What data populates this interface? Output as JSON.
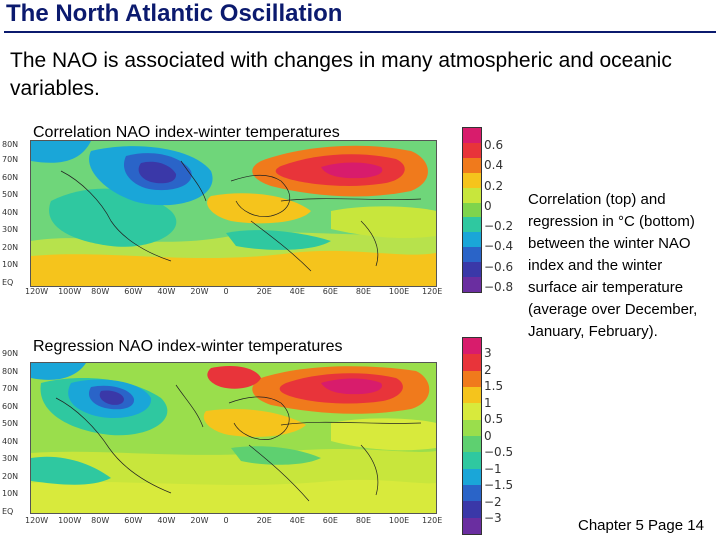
{
  "slide": {
    "title": "The North Atlantic Oscillation",
    "intro": "The NAO is associated with changes in many atmospheric and oceanic variables.",
    "caption": " Correlation (top) and regression in °C (bottom) between the winter NAO index and the winter surface air temperature (average over December, January, February).",
    "footer": "Chapter 5 Page 14"
  },
  "maps": {
    "top": {
      "label": "Correlation NAO index-winter temperatures",
      "lat_labels": [
        "80N",
        "70N",
        "60N",
        "50N",
        "40N",
        "30N",
        "20N",
        "10N",
        "EQ"
      ],
      "lat_top_label": "80N",
      "lon_labels": [
        "120W",
        "100W",
        "80W",
        "60W",
        "40W",
        "20W",
        "0",
        "20E",
        "40E",
        "60E",
        "80E",
        "100E",
        "120E"
      ],
      "colorbar_ticks": [
        "0.6",
        "0.4",
        "0.2",
        "0",
        "−0.2",
        "−0.4",
        "−0.6",
        "−0.8"
      ],
      "colorbar_colors": [
        "#d81c6c",
        "#e8343a",
        "#f07a1c",
        "#f5c41c",
        "#c8e63c",
        "#7ed44c",
        "#2fc8a0",
        "#1aa6d8",
        "#2a64c8",
        "#3a38a8",
        "#6a2ea0"
      ]
    },
    "bottom": {
      "label": "Regression NAO index-winter temperatures",
      "lat_labels": [
        "90N",
        "80N",
        "70N",
        "60N",
        "50N",
        "40N",
        "30N",
        "20N",
        "10N",
        "EQ"
      ],
      "lon_labels": [
        "120W",
        "100W",
        "80W",
        "60W",
        "40W",
        "20W",
        "0",
        "20E",
        "40E",
        "60E",
        "80E",
        "100E",
        "120E"
      ],
      "colorbar_ticks": [
        "3",
        "2",
        "1.5",
        "1",
        "0.5",
        "0",
        "−0.5",
        "−1",
        "−1.5",
        "−2",
        "−3"
      ],
      "colorbar_colors": [
        "#d81c6c",
        "#e8343a",
        "#f07a1c",
        "#f5c41c",
        "#d8ea3c",
        "#9ade4c",
        "#5ed070",
        "#2fc8a0",
        "#1aa6d8",
        "#2a64c8",
        "#3a38a8",
        "#6a2ea0"
      ]
    }
  }
}
